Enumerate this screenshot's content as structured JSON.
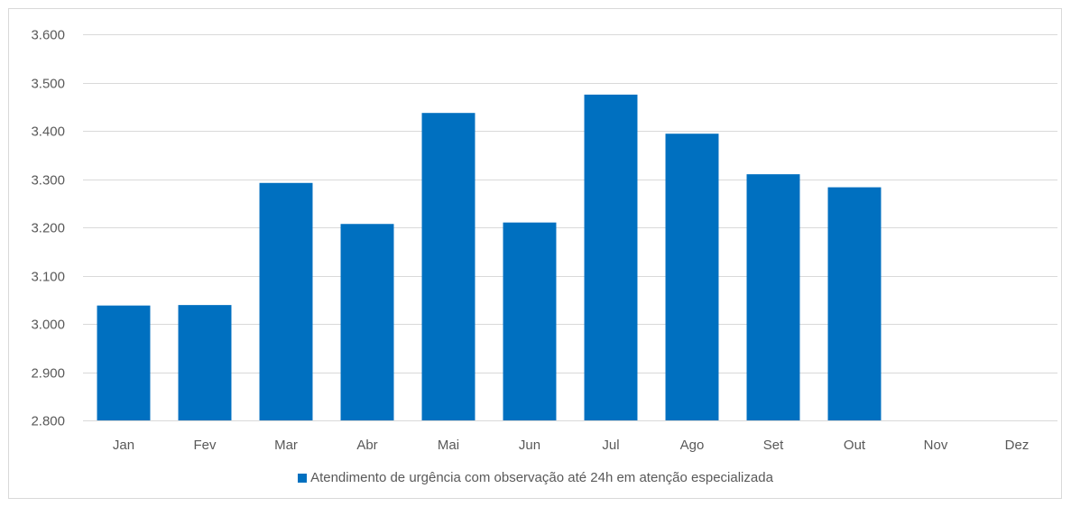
{
  "colors": {
    "bar": "#0070C0",
    "grid": "#d9d9d9",
    "axis_text": "#595959"
  },
  "chart_data": {
    "type": "bar",
    "categories": [
      "Jan",
      "Fev",
      "Mar",
      "Abr",
      "Mai",
      "Jun",
      "Jul",
      "Ago",
      "Set",
      "Out",
      "Nov",
      "Dez"
    ],
    "series": [
      {
        "name": "Atendimento de urgência com observação até 24h em atenção especializada",
        "values": [
          3038,
          3039,
          3292,
          3207,
          3437,
          3210,
          3475,
          3394,
          3310,
          3283,
          null,
          null
        ]
      }
    ],
    "ylim": [
      2800,
      3600
    ],
    "yticks": [
      "2.800",
      "2.900",
      "3.000",
      "3.100",
      "3.200",
      "3.300",
      "3.400",
      "3.500",
      "3.600"
    ],
    "ytick_values": [
      2800,
      2900,
      3000,
      3100,
      3200,
      3300,
      3400,
      3500,
      3600
    ],
    "grid": true,
    "legend_position": "bottom"
  }
}
